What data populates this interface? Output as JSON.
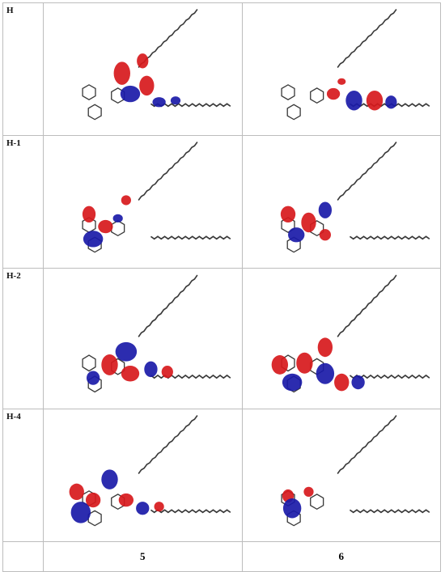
{
  "rows": [
    {
      "label": "H"
    },
    {
      "label": "H-1"
    },
    {
      "label": "H-2"
    },
    {
      "label": "H-4"
    }
  ],
  "columns": [
    {
      "label": "5"
    },
    {
      "label": "6"
    }
  ],
  "colors": {
    "orbital_positive": "#d7191c",
    "orbital_negative": "#1a1aa8",
    "bond": "#3a3a3a",
    "grid_line": "#bdbdbd"
  }
}
